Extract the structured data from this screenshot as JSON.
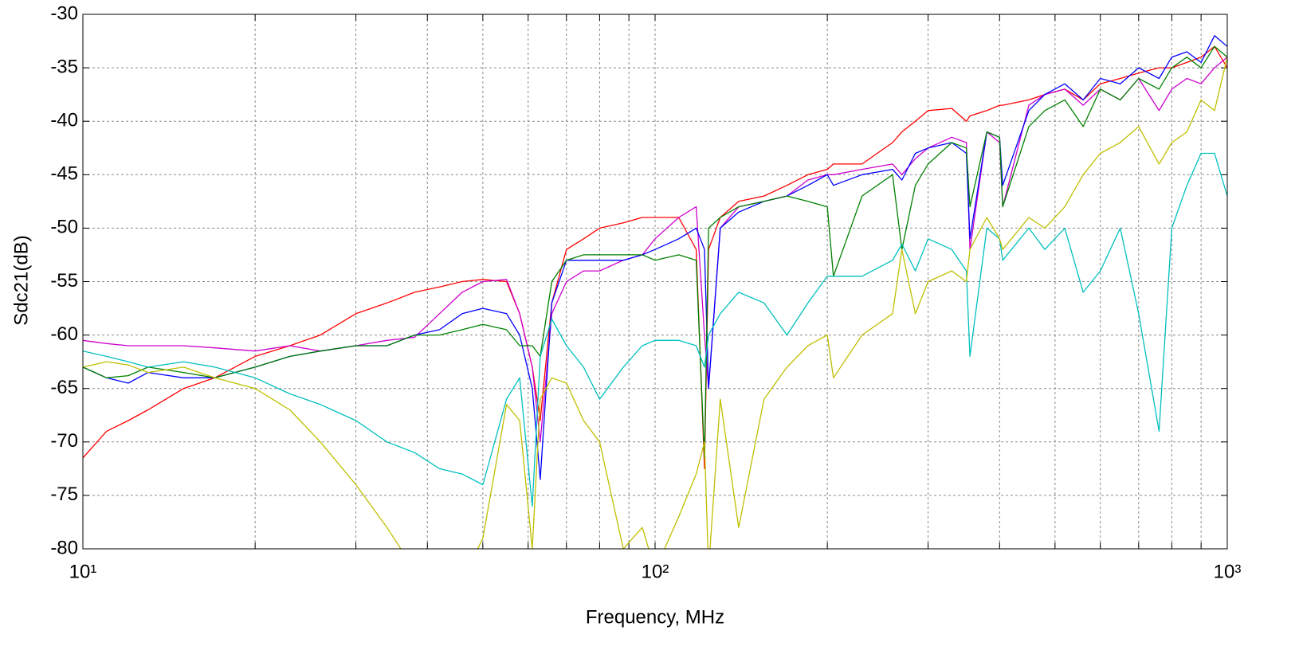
{
  "chart_data": {
    "type": "line",
    "xlabel": "Frequency, MHz",
    "ylabel": "Sdc21(dB)",
    "xscale": "log",
    "grid": true,
    "xlim": [
      10,
      1000
    ],
    "ylim": [
      -80,
      -30
    ],
    "xticks": [
      {
        "value": 10,
        "label": "10¹"
      },
      {
        "value": 100,
        "label": "10²"
      },
      {
        "value": 1000,
        "label": "10³"
      }
    ],
    "xminorticks": [
      20,
      30,
      40,
      50,
      60,
      70,
      80,
      90,
      200,
      300,
      400,
      500,
      600,
      700,
      800,
      900
    ],
    "yticks": [
      -80,
      -75,
      -70,
      -65,
      -60,
      -55,
      -50,
      -45,
      -40,
      -35,
      -30
    ],
    "x": [
      10,
      11,
      12,
      13,
      15,
      17,
      20,
      23,
      26,
      30,
      34,
      38,
      42,
      46,
      50,
      55,
      58,
      61,
      63,
      66,
      70,
      75,
      80,
      88,
      95,
      100,
      110,
      118,
      122,
      124,
      130,
      140,
      155,
      170,
      185,
      200,
      205,
      230,
      260,
      270,
      285,
      300,
      330,
      350,
      355,
      380,
      400,
      405,
      450,
      480,
      520,
      560,
      600,
      650,
      700,
      760,
      800,
      850,
      900,
      950,
      1000
    ],
    "series": [
      {
        "color": "#ff0000",
        "values": [
          -71.5,
          -69,
          -68,
          -67,
          -65,
          -64,
          -62,
          -61,
          -60,
          -58,
          -57,
          -56,
          -55.5,
          -55,
          -54.8,
          -55,
          -58,
          -63,
          -68,
          -57,
          -52,
          -51,
          -50,
          -49.5,
          -49,
          -49,
          -49,
          -52,
          -72.5,
          -52,
          -49,
          -47.5,
          -47,
          -46,
          -45,
          -44.5,
          -44,
          -44,
          -42,
          -41,
          -40,
          -39,
          -38.8,
          -40,
          -39.5,
          -39,
          -38.5,
          -38.5,
          -38,
          -37.5,
          -37,
          -38,
          -36.5,
          -36,
          -35.5,
          -35,
          -35,
          -34.5,
          -34,
          -33,
          -35
        ]
      },
      {
        "color": "#cc00cc",
        "values": [
          -60.5,
          -60.8,
          -61,
          -61,
          -61,
          -61.2,
          -61.5,
          -61,
          -61.5,
          -61,
          -60.5,
          -60.2,
          -58,
          -56,
          -55,
          -54.8,
          -58,
          -63,
          -70,
          -58,
          -55,
          -54,
          -54,
          -53,
          -52.5,
          -51,
          -49,
          -48,
          -60,
          -65,
          -50,
          -48,
          -47.5,
          -47,
          -45.5,
          -45,
          -45,
          -44.5,
          -44,
          -45,
          -43.5,
          -42.5,
          -41.5,
          -42,
          -52,
          -41,
          -42,
          -48,
          -38.5,
          -37.5,
          -37,
          -38.5,
          -37,
          -38,
          -36,
          -39,
          -37,
          -36,
          -36.5,
          -35,
          -34
        ]
      },
      {
        "color": "#0000ff",
        "values": [
          -63,
          -64,
          -64.5,
          -63.5,
          -64,
          -64,
          -63,
          -62,
          -61.5,
          -61,
          -61,
          -60,
          -59.5,
          -58,
          -57.5,
          -58,
          -60,
          -65,
          -73.5,
          -57,
          -53,
          -53,
          -53,
          -53,
          -52.5,
          -52,
          -51,
          -50,
          -52,
          -65,
          -50,
          -48.5,
          -47.5,
          -47,
          -46,
          -45,
          -46,
          -45,
          -44.5,
          -45.5,
          -43,
          -42.5,
          -42,
          -43,
          -51,
          -41,
          -41.5,
          -46,
          -39,
          -37.5,
          -36.5,
          -38,
          -36,
          -36.5,
          -35,
          -36,
          -34,
          -33.5,
          -34.5,
          -32,
          -33
        ]
      },
      {
        "color": "#008000",
        "values": [
          -63,
          -64,
          -63.8,
          -63,
          -63.5,
          -64,
          -63,
          -62,
          -61.5,
          -61,
          -61,
          -60,
          -60,
          -59.5,
          -59,
          -59.5,
          -61,
          -61,
          -62,
          -55,
          -53,
          -52.5,
          -52.5,
          -52.5,
          -52.5,
          -53,
          -52.5,
          -53,
          -71.5,
          -50,
          -49,
          -48,
          -47.5,
          -47,
          -47.5,
          -48,
          -54.5,
          -47,
          -45,
          -52,
          -46,
          -44,
          -42,
          -42.5,
          -48,
          -41,
          -41.5,
          -48,
          -40.5,
          -39,
          -38,
          -40.5,
          -37,
          -38,
          -36,
          -37,
          -35,
          -34,
          -35,
          -33,
          -34
        ]
      },
      {
        "color": "#00bfbf",
        "values": [
          -61.5,
          -62,
          -62.5,
          -63,
          -62.5,
          -63,
          -64,
          -65.5,
          -66.5,
          -68,
          -70,
          -71,
          -72.5,
          -73,
          -74,
          -66,
          -64,
          -76,
          -62,
          -58.5,
          -61,
          -63,
          -66,
          -63,
          -61,
          -60.5,
          -60.5,
          -61,
          -63,
          -60,
          -58,
          -56,
          -57,
          -60,
          -57,
          -54.5,
          -54.5,
          -54.5,
          -53,
          -51.5,
          -54,
          -51,
          -52,
          -54,
          -62,
          -50,
          -51,
          -53,
          -50,
          -52,
          -50,
          -56,
          -54,
          -50,
          -58,
          -69,
          -50,
          -46,
          -43,
          -43,
          -47
        ]
      },
      {
        "color": "#bfbf00",
        "values": [
          -63,
          -62.5,
          -62.8,
          -63.5,
          -63,
          -64,
          -65,
          -67,
          -70,
          -74,
          -78,
          -82,
          -80,
          -83,
          -79,
          -66.5,
          -68,
          -80,
          -66,
          -64,
          -64.5,
          -68,
          -70,
          -80,
          -78,
          -82,
          -77,
          -73,
          -70,
          -82,
          -66,
          -78,
          -66,
          -63,
          -61,
          -60,
          -64,
          -60,
          -58,
          -52,
          -58,
          -55,
          -54,
          -55,
          -52,
          -49,
          -51,
          -52,
          -49,
          -50,
          -48,
          -45,
          -43,
          -42,
          -40.5,
          -44,
          -42,
          -41,
          -38,
          -39,
          -34
        ]
      }
    ]
  }
}
